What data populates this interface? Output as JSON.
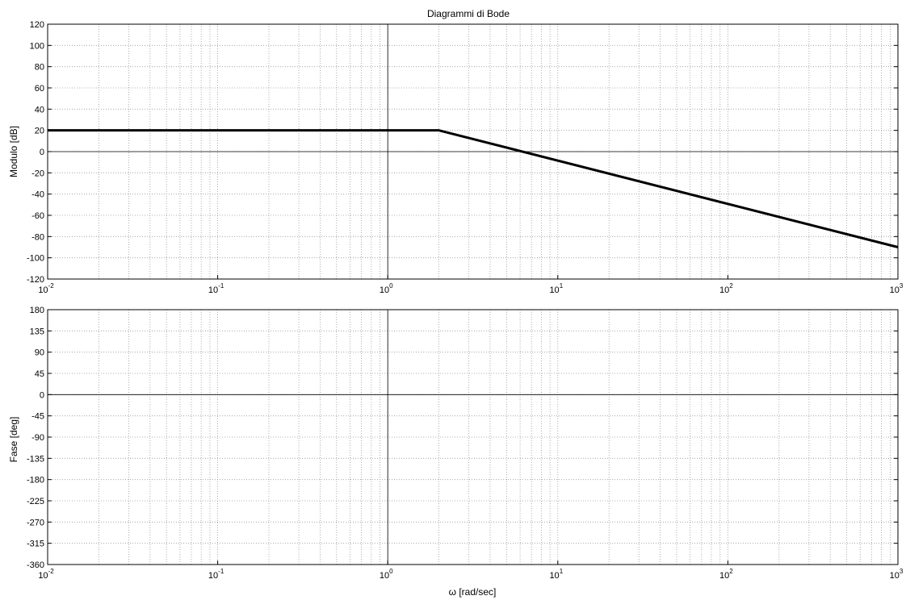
{
  "chart_data": [
    {
      "type": "line",
      "title": "Diagrammi di Bode",
      "xlabel": "",
      "ylabel": "Modulo [dB]",
      "xscale": "log",
      "xlim": [
        0.01,
        1000
      ],
      "ylim": [
        -120,
        120
      ],
      "yticks": [
        -120,
        -100,
        -80,
        -60,
        -40,
        -20,
        0,
        20,
        40,
        60,
        80,
        100,
        120
      ],
      "xticks": [
        {
          "base": "10",
          "exp": "-2"
        },
        {
          "base": "10",
          "exp": "-1"
        },
        {
          "base": "10",
          "exp": "0"
        },
        {
          "base": "10",
          "exp": "1"
        },
        {
          "base": "10",
          "exp": "2"
        },
        {
          "base": "10",
          "exp": "3"
        }
      ],
      "grid": true,
      "series": [
        {
          "x": [
            0.01,
            2,
            1000
          ],
          "values": [
            20,
            20,
            -90
          ],
          "color": "#000000"
        }
      ]
    },
    {
      "type": "line",
      "title": "",
      "xlabel": "ω [rad/sec]",
      "ylabel": "Fase [deg]",
      "xscale": "log",
      "xlim": [
        0.01,
        1000
      ],
      "ylim": [
        -360,
        180
      ],
      "yticks": [
        -360,
        -315,
        -270,
        -225,
        -180,
        -135,
        -90,
        -45,
        0,
        45,
        90,
        135,
        180
      ],
      "xticks": [
        {
          "base": "10",
          "exp": "-2"
        },
        {
          "base": "10",
          "exp": "-1"
        },
        {
          "base": "10",
          "exp": "0"
        },
        {
          "base": "10",
          "exp": "1"
        },
        {
          "base": "10",
          "exp": "2"
        },
        {
          "base": "10",
          "exp": "3"
        }
      ],
      "grid": true,
      "series": []
    }
  ]
}
